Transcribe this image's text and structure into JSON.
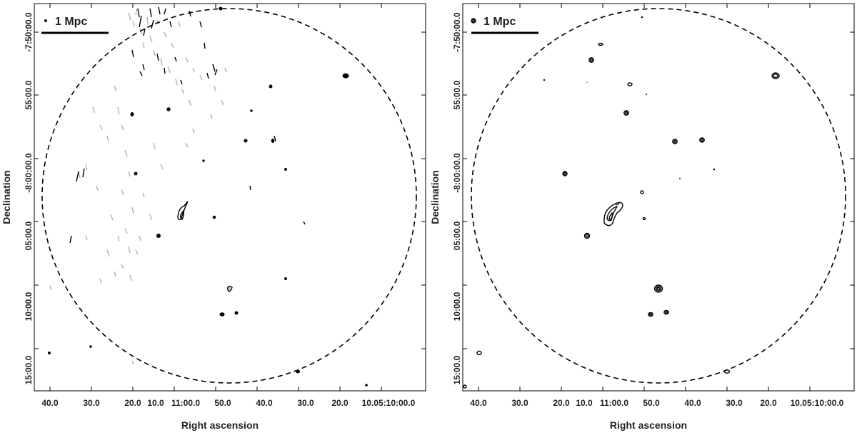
{
  "panels": [
    {
      "scale_label": "1 Mpc",
      "xlabel": "Right ascension",
      "ylabel": "Declination",
      "x_ticks": [
        "40.0",
        "30.0",
        "20.0",
        "10.0",
        "11:00.0",
        "50.0",
        "40.0",
        "30.0",
        "20.0",
        "10.05:10:00.0"
      ],
      "y_ticks": [
        "-7:50:00.0",
        "55:00.0",
        "-8:00:00.0",
        "05:00.0",
        "10:00.0",
        "15:00.0"
      ]
    },
    {
      "scale_label": "1 Mpc",
      "xlabel": "Right ascension",
      "ylabel": "Declination",
      "x_ticks": [
        "40.0",
        "30.0",
        "20.0",
        "10.0",
        "11:00.0",
        "50.0",
        "40.0",
        "30.0",
        "20.0",
        "10.05:10:00.0"
      ],
      "y_ticks": [
        "-7:50:00.0",
        "55:00.0",
        "-8:00:00.0",
        "05:00.0",
        "10:00.0",
        "15:00.0"
      ]
    }
  ],
  "colors": {
    "contour": "#000000",
    "negative_contour": "#b0b0b0",
    "circle": "#000000"
  }
}
